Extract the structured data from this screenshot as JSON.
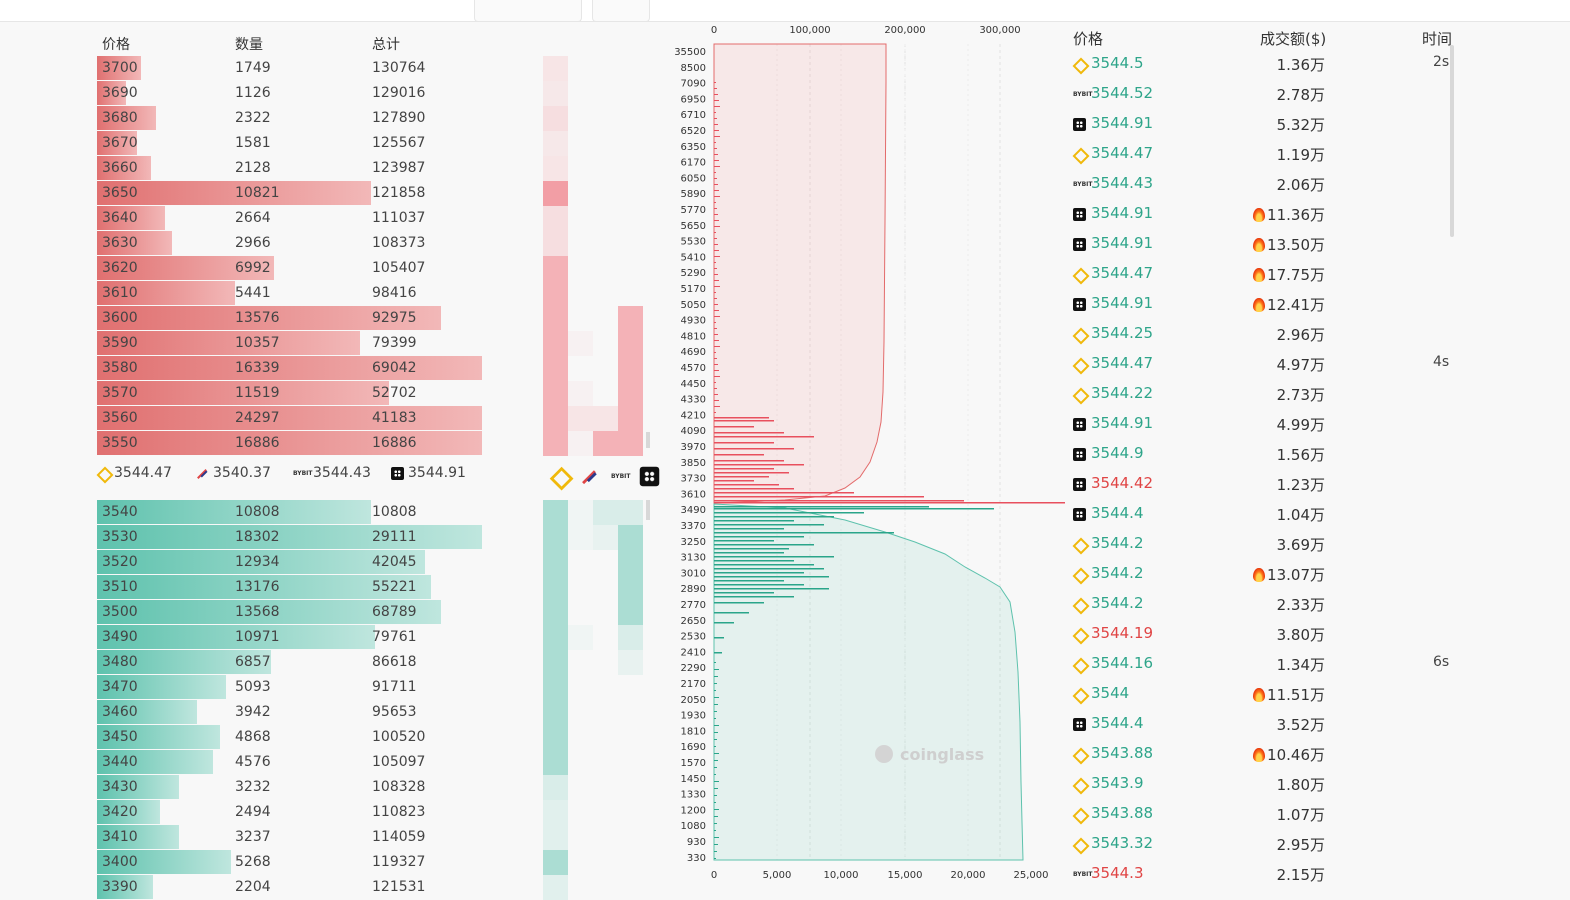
{
  "orderbook": {
    "headers": {
      "price": "价格",
      "qty": "数量",
      "total": "总计"
    },
    "asks": [
      {
        "price": "3700",
        "qty": "1749",
        "total": "130764"
      },
      {
        "price": "3690",
        "qty": "1126",
        "total": "129016"
      },
      {
        "price": "3680",
        "qty": "2322",
        "total": "127890"
      },
      {
        "price": "3670",
        "qty": "1581",
        "total": "125567"
      },
      {
        "price": "3660",
        "qty": "2128",
        "total": "123987"
      },
      {
        "price": "3650",
        "qty": "10821",
        "total": "121858"
      },
      {
        "price": "3640",
        "qty": "2664",
        "total": "111037"
      },
      {
        "price": "3630",
        "qty": "2966",
        "total": "108373"
      },
      {
        "price": "3620",
        "qty": "6992",
        "total": "105407"
      },
      {
        "price": "3610",
        "qty": "5441",
        "total": "98416"
      },
      {
        "price": "3600",
        "qty": "13576",
        "total": "92975"
      },
      {
        "price": "3590",
        "qty": "10357",
        "total": "79399"
      },
      {
        "price": "3580",
        "qty": "16339",
        "total": "69042"
      },
      {
        "price": "3570",
        "qty": "11519",
        "total": "52702"
      },
      {
        "price": "3560",
        "qty": "24297",
        "total": "41183"
      },
      {
        "price": "3550",
        "qty": "16886",
        "total": "16886"
      }
    ],
    "bids": [
      {
        "price": "3540",
        "qty": "10808",
        "total": "10808"
      },
      {
        "price": "3530",
        "qty": "18302",
        "total": "29111"
      },
      {
        "price": "3520",
        "qty": "12934",
        "total": "42045"
      },
      {
        "price": "3510",
        "qty": "13176",
        "total": "55221"
      },
      {
        "price": "3500",
        "qty": "13568",
        "total": "68789"
      },
      {
        "price": "3490",
        "qty": "10971",
        "total": "79761"
      },
      {
        "price": "3480",
        "qty": "6857",
        "total": "86618"
      },
      {
        "price": "3470",
        "qty": "5093",
        "total": "91711"
      },
      {
        "price": "3460",
        "qty": "3942",
        "total": "95653"
      },
      {
        "price": "3450",
        "qty": "4868",
        "total": "100520"
      },
      {
        "price": "3440",
        "qty": "4576",
        "total": "105097"
      },
      {
        "price": "3430",
        "qty": "3232",
        "total": "108328"
      },
      {
        "price": "3420",
        "qty": "2494",
        "total": "110823"
      },
      {
        "price": "3410",
        "qty": "3237",
        "total": "114059"
      },
      {
        "price": "3400",
        "qty": "5268",
        "total": "119327"
      },
      {
        "price": "3390",
        "qty": "2204",
        "total": "121531"
      }
    ],
    "mid_prices": [
      {
        "exchange_icon": "binance-icon",
        "price": "3544.47"
      },
      {
        "exchange_icon": "coinbase-icon",
        "price": "3540.37"
      },
      {
        "exchange_icon": "bybit-icon",
        "price": "3544.43"
      },
      {
        "exchange_icon": "okx-icon",
        "price": "3544.91"
      }
    ]
  },
  "depth_chart": {
    "top_axis_ticks": [
      "0",
      "100,000",
      "200,000",
      "300,000"
    ],
    "bottom_axis_ticks": [
      "0",
      "5,000",
      "10,000",
      "15,000",
      "20,000",
      "25,000"
    ],
    "price_ticks": [
      "35500",
      "8500",
      "7090",
      "6950",
      "6710",
      "6520",
      "6350",
      "6170",
      "6050",
      "5890",
      "5770",
      "5650",
      "5530",
      "5410",
      "5290",
      "5170",
      "5050",
      "4930",
      "4810",
      "4690",
      "4570",
      "4450",
      "4330",
      "4210",
      "4090",
      "3970",
      "3850",
      "3730",
      "3610",
      "3490",
      "3370",
      "3250",
      "3130",
      "3010",
      "2890",
      "2770",
      "2650",
      "2530",
      "2410",
      "2290",
      "2170",
      "2050",
      "1930",
      "1810",
      "1690",
      "1570",
      "1450",
      "1330",
      "1200",
      "1080",
      "930",
      "330"
    ],
    "watermark": "coinglass"
  },
  "trades": {
    "headers": {
      "price": "价格",
      "amount": "成交额($)",
      "time": "时间"
    },
    "rows": [
      {
        "icon": "binance-icon",
        "price": "3544.5",
        "side": "buy",
        "amount": "1.36万",
        "hot": false,
        "time": "2s"
      },
      {
        "icon": "bybit-icon",
        "price": "3544.52",
        "side": "buy",
        "amount": "2.78万",
        "hot": false,
        "time": ""
      },
      {
        "icon": "okx-icon",
        "price": "3544.91",
        "side": "buy",
        "amount": "5.32万",
        "hot": false,
        "time": ""
      },
      {
        "icon": "binance-icon",
        "price": "3544.47",
        "side": "buy",
        "amount": "1.19万",
        "hot": false,
        "time": ""
      },
      {
        "icon": "bybit-icon",
        "price": "3544.43",
        "side": "buy",
        "amount": "2.06万",
        "hot": false,
        "time": ""
      },
      {
        "icon": "okx-icon",
        "price": "3544.91",
        "side": "buy",
        "amount": "11.36万",
        "hot": true,
        "time": ""
      },
      {
        "icon": "okx-icon",
        "price": "3544.91",
        "side": "buy",
        "amount": "13.50万",
        "hot": true,
        "time": ""
      },
      {
        "icon": "binance-icon",
        "price": "3544.47",
        "side": "buy",
        "amount": "17.75万",
        "hot": true,
        "time": ""
      },
      {
        "icon": "okx-icon",
        "price": "3544.91",
        "side": "buy",
        "amount": "12.41万",
        "hot": true,
        "time": ""
      },
      {
        "icon": "binance-icon",
        "price": "3544.25",
        "side": "buy",
        "amount": "2.96万",
        "hot": false,
        "time": ""
      },
      {
        "icon": "binance-icon",
        "price": "3544.47",
        "side": "buy",
        "amount": "4.97万",
        "hot": false,
        "time": "4s"
      },
      {
        "icon": "binance-icon",
        "price": "3544.22",
        "side": "buy",
        "amount": "2.73万",
        "hot": false,
        "time": ""
      },
      {
        "icon": "okx-icon",
        "price": "3544.91",
        "side": "buy",
        "amount": "4.99万",
        "hot": false,
        "time": ""
      },
      {
        "icon": "okx-icon",
        "price": "3544.9",
        "side": "buy",
        "amount": "1.56万",
        "hot": false,
        "time": ""
      },
      {
        "icon": "okx-icon",
        "price": "3544.42",
        "side": "sell",
        "amount": "1.23万",
        "hot": false,
        "time": ""
      },
      {
        "icon": "okx-icon",
        "price": "3544.4",
        "side": "buy",
        "amount": "1.04万",
        "hot": false,
        "time": ""
      },
      {
        "icon": "binance-icon",
        "price": "3544.2",
        "side": "buy",
        "amount": "3.69万",
        "hot": false,
        "time": ""
      },
      {
        "icon": "binance-icon",
        "price": "3544.2",
        "side": "buy",
        "amount": "13.07万",
        "hot": true,
        "time": ""
      },
      {
        "icon": "binance-icon",
        "price": "3544.2",
        "side": "buy",
        "amount": "2.33万",
        "hot": false,
        "time": ""
      },
      {
        "icon": "binance-icon",
        "price": "3544.19",
        "side": "sell",
        "amount": "3.80万",
        "hot": false,
        "time": ""
      },
      {
        "icon": "binance-icon",
        "price": "3544.16",
        "side": "buy",
        "amount": "1.34万",
        "hot": false,
        "time": "6s"
      },
      {
        "icon": "binance-icon",
        "price": "3544",
        "side": "buy",
        "amount": "11.51万",
        "hot": true,
        "time": ""
      },
      {
        "icon": "okx-icon",
        "price": "3544.4",
        "side": "buy",
        "amount": "3.52万",
        "hot": false,
        "time": ""
      },
      {
        "icon": "binance-icon",
        "price": "3543.88",
        "side": "buy",
        "amount": "10.46万",
        "hot": true,
        "time": ""
      },
      {
        "icon": "binance-icon",
        "price": "3543.9",
        "side": "buy",
        "amount": "1.80万",
        "hot": false,
        "time": ""
      },
      {
        "icon": "binance-icon",
        "price": "3543.88",
        "side": "buy",
        "amount": "1.07万",
        "hot": false,
        "time": ""
      },
      {
        "icon": "binance-icon",
        "price": "3543.32",
        "side": "buy",
        "amount": "2.95万",
        "hot": false,
        "time": ""
      },
      {
        "icon": "bybit-icon",
        "price": "3544.3",
        "side": "sell",
        "amount": "2.15万",
        "hot": false,
        "time": ""
      }
    ]
  },
  "colors": {
    "ask": "#e07070",
    "bid": "#5ec2ad",
    "buy_text": "#2ea58a",
    "sell_text": "#e04545"
  }
}
